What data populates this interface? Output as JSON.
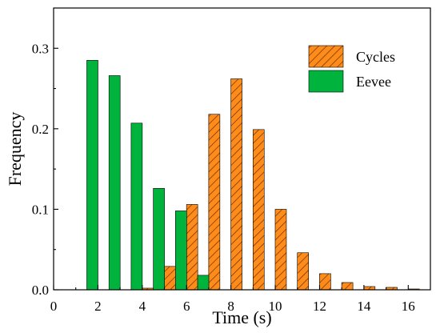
{
  "chart_data": {
    "type": "bar",
    "xlabel": "Time (s)",
    "ylabel": "Frequency",
    "xlim": [
      0,
      17
    ],
    "ylim": [
      0,
      0.35
    ],
    "xticks": [
      0,
      2,
      4,
      6,
      8,
      10,
      12,
      14,
      16
    ],
    "yticks": [
      0.0,
      0.1,
      0.2,
      0.3
    ],
    "ytick_labels": [
      "0.0",
      "0.1",
      "0.2",
      "0.3"
    ],
    "bin_width": 1,
    "grid": false,
    "legend_position": "top-right",
    "series": [
      {
        "name": "Cycles",
        "color": "#ff8c1a",
        "pattern": "diagonal-hatch",
        "x": [
          4.25,
          5.25,
          6.25,
          7.25,
          8.25,
          9.25,
          10.25,
          11.25,
          12.25,
          13.25,
          14.25,
          15.25,
          16.25
        ],
        "values": [
          0.002,
          0.029,
          0.106,
          0.218,
          0.262,
          0.199,
          0.1,
          0.046,
          0.02,
          0.009,
          0.004,
          0.003,
          0.001
        ]
      },
      {
        "name": "Eevee",
        "color": "#00b33c",
        "pattern": "solid",
        "x": [
          1.75,
          2.75,
          3.75,
          4.75,
          5.75,
          6.75
        ],
        "values": [
          0.285,
          0.266,
          0.207,
          0.126,
          0.098,
          0.018
        ]
      }
    ]
  }
}
